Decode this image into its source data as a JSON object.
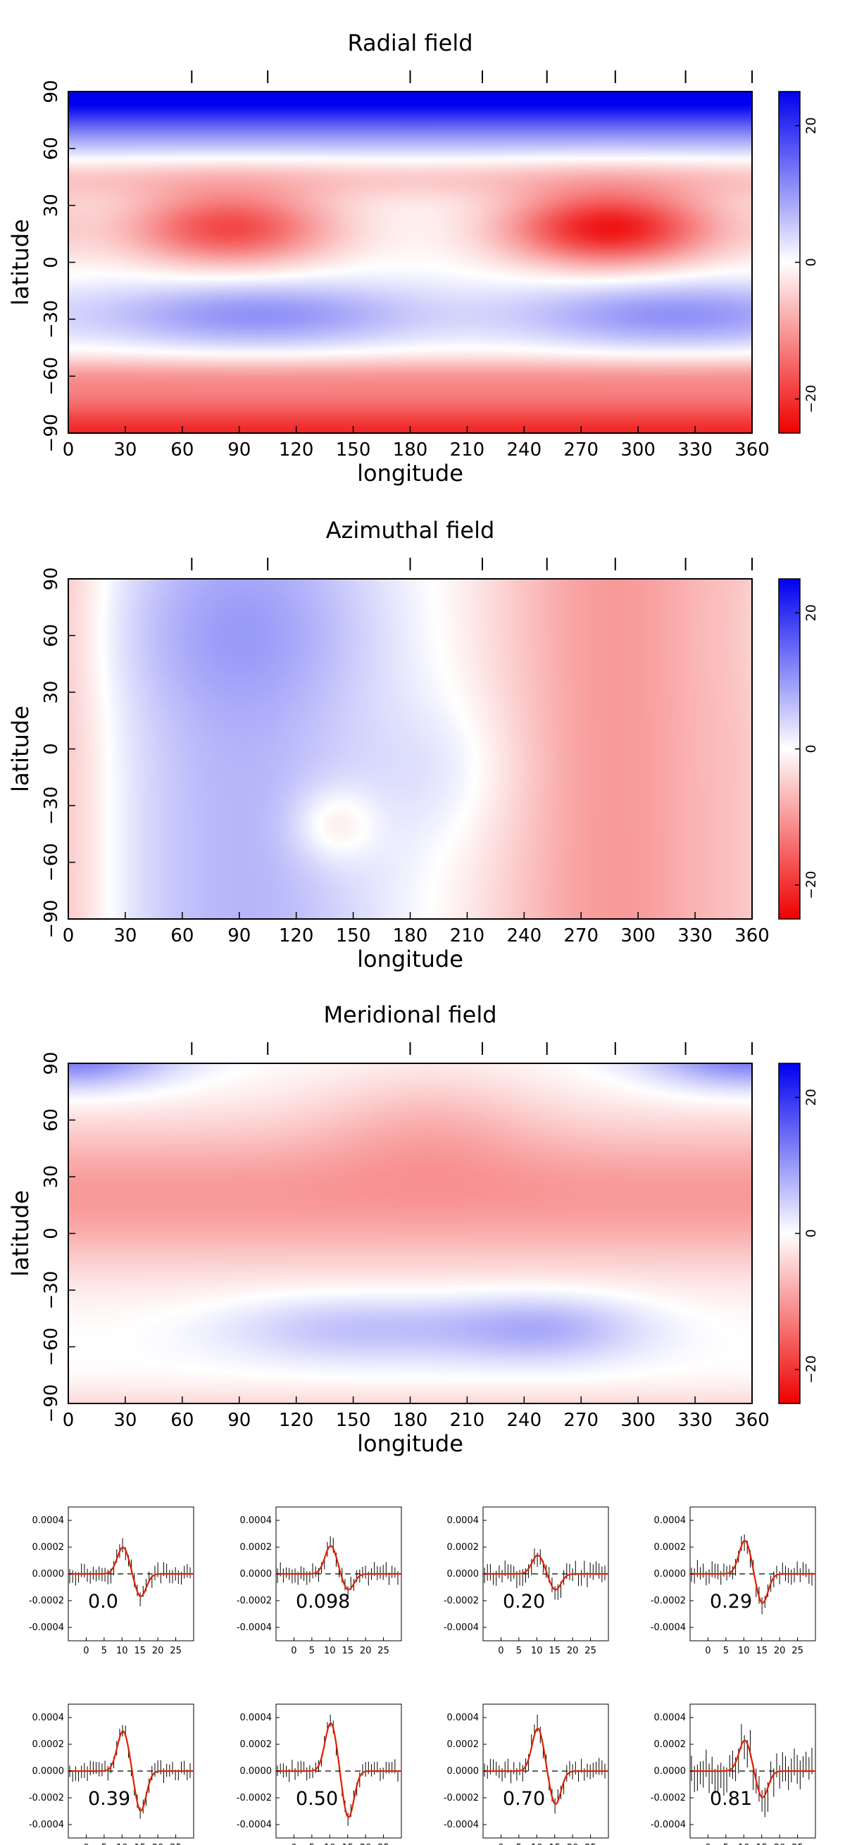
{
  "colors": {
    "negative": "#ee0000",
    "neutral": "#ffffff",
    "positive": "#0000ee",
    "profile_line": "#dd2200",
    "error_bar": "#000000"
  },
  "chart_data": [
    {
      "type": "heatmap",
      "title": "Radial field",
      "xlabel": "longitude",
      "ylabel": "latitude",
      "xlim": [
        0,
        360
      ],
      "ylim": [
        -90,
        90
      ],
      "xticks": [
        0,
        30,
        60,
        90,
        120,
        150,
        180,
        210,
        240,
        270,
        300,
        330,
        360
      ],
      "yticks": [
        -90,
        -60,
        -30,
        0,
        30,
        60,
        90
      ],
      "xtick_labels": [
        "0",
        "30",
        "60",
        "90",
        "120",
        "150",
        "180",
        "210",
        "240",
        "270",
        "300",
        "330",
        "360"
      ],
      "ytick_labels": [
        "−90",
        "−60",
        "−30",
        "0",
        "30",
        "60",
        "90"
      ],
      "top_ticks": [
        65,
        105,
        180,
        218,
        252,
        288,
        325,
        360
      ],
      "colorbar": {
        "range": [
          -25,
          25
        ],
        "ticks": [
          20,
          0,
          -20
        ],
        "tick_labels": [
          "20",
          "0",
          "−20"
        ]
      },
      "field": {
        "kind": "radial"
      }
    },
    {
      "type": "heatmap",
      "title": "Azimuthal field",
      "xlabel": "longitude",
      "ylabel": "latitude",
      "xlim": [
        0,
        360
      ],
      "ylim": [
        -90,
        90
      ],
      "xticks": [
        0,
        30,
        60,
        90,
        120,
        150,
        180,
        210,
        240,
        270,
        300,
        330,
        360
      ],
      "yticks": [
        -90,
        -60,
        -30,
        0,
        30,
        60,
        90
      ],
      "xtick_labels": [
        "0",
        "30",
        "60",
        "90",
        "120",
        "150",
        "180",
        "210",
        "240",
        "270",
        "300",
        "330",
        "360"
      ],
      "ytick_labels": [
        "−90",
        "−60",
        "−30",
        "0",
        "30",
        "60",
        "90"
      ],
      "top_ticks": [
        65,
        105,
        180,
        218,
        252,
        288,
        325,
        360
      ],
      "colorbar": {
        "range": [
          -25,
          25
        ],
        "ticks": [
          20,
          0,
          -20
        ],
        "tick_labels": [
          "20",
          "0",
          "−20"
        ]
      },
      "field": {
        "kind": "azimuthal"
      }
    },
    {
      "type": "heatmap",
      "title": "Meridional field",
      "xlabel": "longitude",
      "ylabel": "latitude",
      "xlim": [
        0,
        360
      ],
      "ylim": [
        -90,
        90
      ],
      "xticks": [
        0,
        30,
        60,
        90,
        120,
        150,
        180,
        210,
        240,
        270,
        300,
        330,
        360
      ],
      "yticks": [
        -90,
        -60,
        -30,
        0,
        30,
        60,
        90
      ],
      "xtick_labels": [
        "0",
        "30",
        "60",
        "90",
        "120",
        "150",
        "180",
        "210",
        "240",
        "270",
        "300",
        "330",
        "360"
      ],
      "ytick_labels": [
        "−90",
        "−60",
        "−30",
        "0",
        "30",
        "60",
        "90"
      ],
      "top_ticks": [
        65,
        105,
        180,
        218,
        252,
        288,
        325,
        360
      ],
      "colorbar": {
        "range": [
          -25,
          25
        ],
        "ticks": [
          20,
          0,
          -20
        ],
        "tick_labels": [
          "20",
          "0",
          "−20"
        ]
      },
      "field": {
        "kind": "meridional"
      }
    },
    {
      "type": "line",
      "subtype": "stokes-V-profiles",
      "xlim": [
        -5,
        30
      ],
      "ylim": [
        -0.0005,
        0.0005
      ],
      "xticks": [
        0,
        5,
        10,
        15,
        20,
        25
      ],
      "xtick_labels": [
        "0",
        "5",
        "10",
        "15",
        "20",
        "25"
      ],
      "yticks": [
        0.0004,
        0.0002,
        0.0,
        -0.0002,
        -0.0004
      ],
      "ytick_labels": [
        "0.0004",
        "0.0002",
        "0.0000",
        "-0.0002",
        "-0.0004"
      ],
      "panels": [
        {
          "phase": "0.0",
          "amp_pos": 0.0002,
          "amp_neg": 0.00017,
          "noise": 7e-05
        },
        {
          "phase": "0.098",
          "amp_pos": 0.00021,
          "amp_neg": 0.00012,
          "noise": 7e-05
        },
        {
          "phase": "0.20",
          "amp_pos": 0.00014,
          "amp_neg": 0.00012,
          "noise": 8e-05
        },
        {
          "phase": "0.29",
          "amp_pos": 0.00025,
          "amp_neg": 0.00022,
          "noise": 8e-05
        },
        {
          "phase": "0.39",
          "amp_pos": 0.0003,
          "amp_neg": 0.0003,
          "noise": 7e-05
        },
        {
          "phase": "0.50",
          "amp_pos": 0.00036,
          "amp_neg": 0.00035,
          "noise": 7e-05
        },
        {
          "phase": "0.70",
          "amp_pos": 0.00032,
          "amp_neg": 0.00025,
          "noise": 8e-05
        },
        {
          "phase": "0.81",
          "amp_pos": 0.00023,
          "amp_neg": 0.0002,
          "noise": 0.00014
        }
      ]
    }
  ]
}
